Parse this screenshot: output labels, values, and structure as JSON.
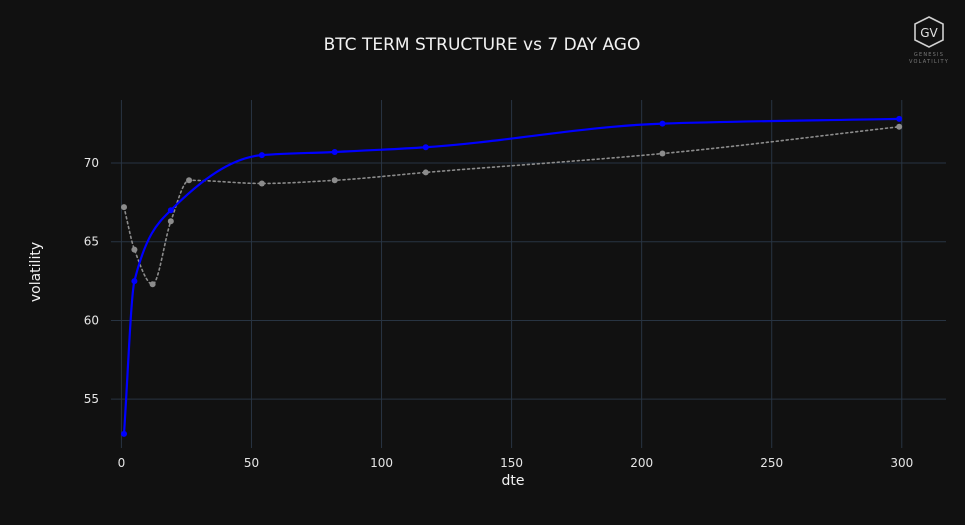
{
  "chart_data": {
    "type": "line",
    "title": "BTC TERM STRUCTURE vs 7 DAY AGO",
    "xlabel": "dte",
    "ylabel": "volatility",
    "xlim": [
      -4,
      317
    ],
    "ylim": [
      51.9,
      74.0
    ],
    "x_ticks": [
      0,
      50,
      100,
      150,
      200,
      250,
      300
    ],
    "y_ticks": [
      55,
      60,
      65,
      70
    ],
    "grid": true,
    "series": [
      {
        "key": "current",
        "color": "#0000ff",
        "style": "solid",
        "x": [
          1,
          5,
          19,
          54,
          82,
          117,
          208,
          299
        ],
        "y": [
          52.8,
          62.5,
          67.0,
          70.5,
          70.7,
          71.0,
          72.5,
          72.8
        ]
      },
      {
        "key": "seven_days_ago",
        "color": "#8c8c8c",
        "style": "dotted",
        "x": [
          1,
          5,
          12,
          19,
          26,
          54,
          82,
          117,
          208,
          299
        ],
        "y": [
          67.2,
          64.5,
          62.3,
          66.3,
          68.9,
          68.7,
          68.9,
          69.4,
          70.6,
          72.3
        ]
      }
    ]
  },
  "logo": {
    "initials": "GV",
    "line1": "GENESIS",
    "line2": "VOLATILITY"
  }
}
